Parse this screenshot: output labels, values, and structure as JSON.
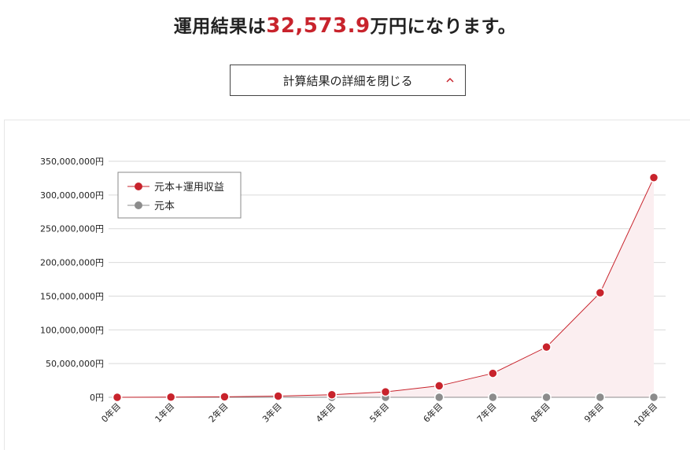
{
  "header": {
    "prefix": "運用結果は",
    "amount": "32,573.9",
    "suffix": "万円になります。"
  },
  "toggle": {
    "label": "計算結果の詳細を閉じる",
    "icon": "chevron-up-icon"
  },
  "colors": {
    "accent": "#c8232c",
    "principal": "#8c8c8c",
    "area_fill": "#fbeef0"
  },
  "chart_data": {
    "type": "line",
    "categories": [
      "0年目",
      "1年目",
      "2年目",
      "3年目",
      "4年目",
      "5年目",
      "6年目",
      "7年目",
      "8年目",
      "9年目",
      "10年目"
    ],
    "series": [
      {
        "name": "元本+運用収益",
        "values": [
          0,
          300000,
          700000,
          1800000,
          3800000,
          8000000,
          17000000,
          35500000,
          74500000,
          155000000,
          325739000
        ]
      },
      {
        "name": "元本",
        "values": [
          0,
          0,
          0,
          0,
          0,
          0,
          0,
          0,
          0,
          0,
          0
        ]
      }
    ],
    "yticks": [
      "0円",
      "50,000,000円",
      "100,000,000円",
      "150,000,000円",
      "200,000,000円",
      "250,000,000円",
      "300,000,000円",
      "350,000,000円"
    ],
    "ylim": [
      0,
      350000000
    ],
    "grid": true,
    "legend_position": "top-left"
  }
}
